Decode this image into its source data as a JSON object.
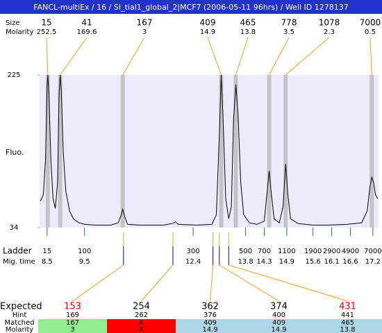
{
  "chart_data": {
    "type": "electropherogram",
    "title": "FANCL-multiEx / 16 / SI_tial1_global_2|MCF7 (2006-05-11 96hrs) / Well ID 1278137",
    "size_label": "Size",
    "molarity_label": "Molarity",
    "ylabel": "Fluo.",
    "ylim": [
      34,
      225
    ],
    "yticks": [
      34,
      225
    ],
    "xlim": [
      8.3,
      17.35
    ],
    "color": "#000000",
    "x": [
      8.32,
      8.4,
      8.46,
      8.5,
      8.52,
      8.55,
      8.6,
      8.66,
      8.72,
      8.78,
      8.82,
      8.85,
      8.88,
      8.93,
      9.0,
      9.1,
      9.2,
      9.35,
      9.5,
      9.8,
      10.2,
      10.4,
      10.48,
      10.52,
      10.57,
      10.65,
      11.0,
      11.6,
      11.85,
      11.93,
      12.0,
      12.5,
      12.9,
      13.02,
      13.1,
      13.15,
      13.2,
      13.27,
      13.35,
      13.42,
      13.48,
      13.54,
      13.6,
      13.67,
      13.75,
      13.9,
      14.1,
      14.3,
      14.38,
      14.43,
      14.48,
      14.56,
      14.7,
      14.8,
      14.87,
      14.93,
      15.0,
      15.2,
      15.6,
      16.0,
      16.5,
      16.9,
      17.05,
      17.12,
      17.17,
      17.22,
      17.27,
      17.33
    ],
    "values": [
      67,
      75,
      120,
      210,
      225,
      200,
      120,
      70,
      58,
      90,
      200,
      225,
      205,
      130,
      80,
      55,
      45,
      40,
      38,
      37,
      37,
      40,
      50,
      57,
      48,
      38,
      37,
      37,
      39,
      41,
      38,
      37,
      38,
      50,
      150,
      225,
      170,
      70,
      45,
      60,
      170,
      213,
      175,
      90,
      50,
      40,
      38,
      42,
      80,
      105,
      80,
      45,
      40,
      60,
      114,
      75,
      45,
      39,
      37,
      37,
      38,
      40,
      55,
      85,
      97,
      90,
      75,
      70
    ],
    "peaks": [
      {
        "size": 15,
        "molarity": 252.5,
        "time": 8.52
      },
      {
        "size": 41,
        "molarity": 169.6,
        "time": 8.85
      },
      {
        "size": 167,
        "molarity": 3,
        "time": 10.52
      },
      {
        "size": 409,
        "molarity": 14.9,
        "time": 13.15
      },
      {
        "size": 465,
        "molarity": 13.8,
        "time": 13.54
      },
      {
        "size": 778,
        "molarity": 3.5,
        "time": 14.43
      },
      {
        "size": 1078,
        "molarity": 2.3,
        "time": 14.87
      },
      {
        "size": 7000,
        "molarity": 0.5,
        "time": 17.17
      }
    ],
    "ladder_label": "Ladder",
    "time_label": "Mig. time",
    "ladder": [
      {
        "size": 15,
        "time": 8.5
      },
      {
        "size": 100,
        "time": 9.5
      },
      {
        "size": 300,
        "time": 12.4
      },
      {
        "size": 500,
        "time": 13.8
      },
      {
        "size": 700,
        "time": 14.3
      },
      {
        "size": 1100,
        "time": 14.9
      },
      {
        "size": 1900,
        "time": 15.6
      },
      {
        "size": 2900,
        "time": 16.1
      },
      {
        "size": 4900,
        "time": 16.6
      },
      {
        "size": 7000,
        "time": 17.2
      }
    ],
    "expected_label": "Expected",
    "hint_label": "Hint",
    "matched_label": "Matched",
    "molarity_row_label": "Molarity",
    "columns": [
      {
        "expected": 153,
        "expected_color": "#e00000",
        "time": 10.54,
        "hint": 169,
        "matched": 167,
        "molarity": 3,
        "color": "#90ee90"
      },
      {
        "expected": 254,
        "expected_color": "#000000",
        "time": 11.86,
        "hint": 262,
        "matched": "X",
        "molarity": "X",
        "color": "#ff0000"
      },
      {
        "expected": 362,
        "expected_color": "#000000",
        "time": 12.93,
        "hint": 376,
        "matched": 409,
        "molarity": 14.9,
        "color": "#add8e6"
      },
      {
        "expected": 374,
        "expected_color": "#000000",
        "time": 13.1,
        "hint": 400,
        "matched": 409,
        "molarity": 14.9,
        "color": "#add8e6"
      },
      {
        "expected": 431,
        "expected_color": "#e00000",
        "time": 13.35,
        "hint": 441,
        "matched": 465,
        "molarity": 13.8,
        "color": "#add8e6"
      }
    ]
  }
}
